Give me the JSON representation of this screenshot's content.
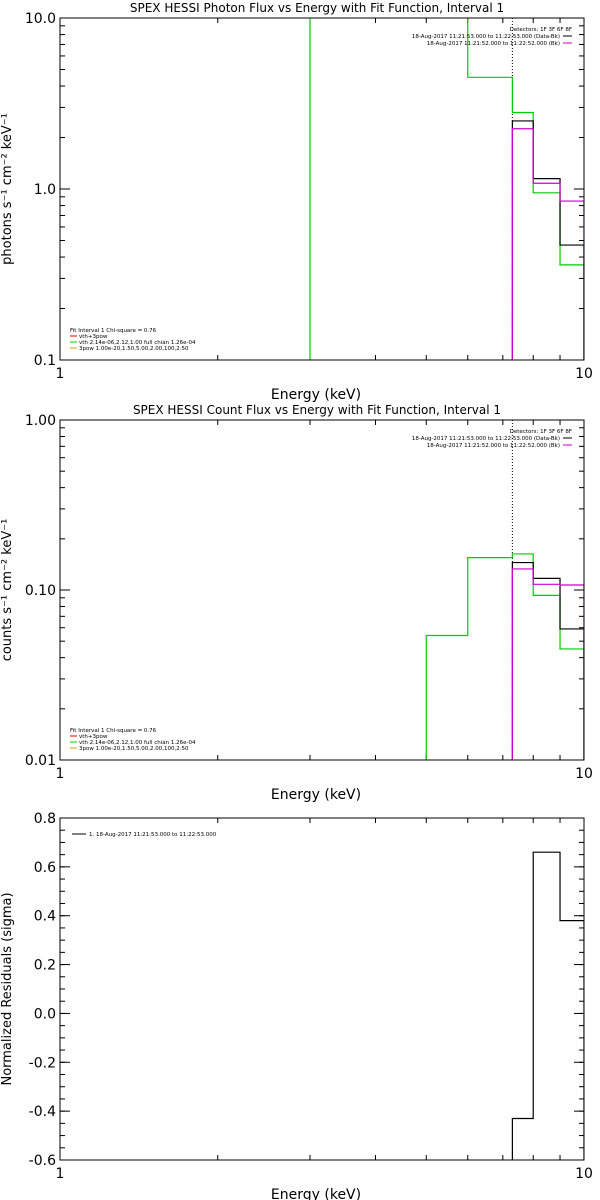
{
  "chart_data": [
    {
      "type": "line",
      "title": "SPEX HESSI Photon Flux vs Energy with Fit Function, Interval 1",
      "xlabel": "Energy (keV)",
      "ylabel": "photons s⁻¹ cm⁻² keV⁻¹",
      "xscale": "log",
      "yscale": "log",
      "xlim": [
        1,
        10
      ],
      "ylim": [
        0.1,
        10
      ],
      "xticks": [
        {
          "v": 1,
          "label": "1"
        },
        {
          "v": 10,
          "label": "10"
        }
      ],
      "yticks": [
        {
          "v": 0.1,
          "label": "0.1"
        },
        {
          "v": 1,
          "label": "1.0"
        },
        {
          "v": 10,
          "label": "10.0"
        }
      ],
      "legend_tr": {
        "header": "Detectors: 1F 3F 6F 8F",
        "entries": [
          {
            "text": "18-Aug-2017 11:21:53.000 to 11:22:53.000 (Data-Bk)",
            "color": "#000000"
          },
          {
            "text": "18-Aug-2017 11:21:52.000 to 11:22:52.000 (Bk)",
            "color": "#cc00cc"
          }
        ]
      },
      "legend_bl": {
        "header": "Fit Interval  1    Chi-square = 0.76",
        "entries": [
          {
            "text": "vth+3pow",
            "color": "#e00000"
          },
          {
            "text": "vth 2.14e-06,2.12,1.00   full chian 1.26e-04",
            "color": "#00cc00"
          },
          {
            "text": "3pow 1.00e-20,1.50,5.00,2.00,100,2.50",
            "color": "#d4a000"
          }
        ]
      },
      "vline": {
        "x": 7.3,
        "ymin": 0.1,
        "ymax": 10,
        "color": "#000000"
      },
      "series": [
        {
          "color": "#00cc00",
          "edges": [
            3,
            5,
            6,
            7.3,
            8,
            9,
            10
          ],
          "values": [
            10.2,
            10.2,
            4.5,
            2.8,
            0.95,
            0.36
          ],
          "drop_to_floor": true
        },
        {
          "color": "#000000",
          "edges": [
            7.3,
            8,
            9,
            10
          ],
          "values": [
            2.5,
            1.15,
            0.47
          ],
          "drop_to_floor": true
        },
        {
          "color": "#cc00cc",
          "edges": [
            7.3,
            8,
            9,
            10
          ],
          "values": [
            2.25,
            1.08,
            0.85
          ],
          "drop_to_floor": true
        }
      ]
    },
    {
      "type": "line",
      "title": "SPEX HESSI Count Flux vs Energy with Fit Function, Interval 1",
      "xlabel": "Energy (keV)",
      "ylabel": "counts s⁻¹ cm⁻² keV⁻¹",
      "xscale": "log",
      "yscale": "log",
      "xlim": [
        1,
        10
      ],
      "ylim": [
        0.01,
        1
      ],
      "xticks": [
        {
          "v": 1,
          "label": "1"
        },
        {
          "v": 10,
          "label": "10"
        }
      ],
      "yticks": [
        {
          "v": 0.01,
          "label": "0.01"
        },
        {
          "v": 0.1,
          "label": "0.10"
        },
        {
          "v": 1,
          "label": "1.00"
        }
      ],
      "legend_tr": {
        "header": "Detectors: 1F 3F 6F 8F",
        "entries": [
          {
            "text": "18-Aug-2017 11:21:53.000 to 11:22:53.000 (Data-Bk)",
            "color": "#000000"
          },
          {
            "text": "18-Aug-2017 11:21:52.000 to 11:22:52.000 (Bk)",
            "color": "#cc00cc"
          }
        ]
      },
      "legend_bl": {
        "header": "Fit Interval  1    Chi-square = 0.76",
        "entries": [
          {
            "text": "vth+3pow",
            "color": "#e00000"
          },
          {
            "text": "vth 2.14e-06,2.12,1.00   full chian 1.26e-04",
            "color": "#00cc00"
          },
          {
            "text": "3pow 1.00e-20,1.50,5.00,2.00,100,2.50",
            "color": "#d4a000"
          }
        ]
      },
      "vline": {
        "x": 7.3,
        "ymin": 0.01,
        "ymax": 1,
        "color": "#000000"
      },
      "series": [
        {
          "color": "#00cc00",
          "edges": [
            5,
            6,
            7.3,
            8,
            9,
            10
          ],
          "values": [
            0.054,
            0.155,
            0.163,
            0.093,
            0.045
          ],
          "drop_to_floor": true
        },
        {
          "color": "#000000",
          "edges": [
            7.3,
            8,
            9,
            10
          ],
          "values": [
            0.145,
            0.117,
            0.059
          ],
          "drop_to_floor": true
        },
        {
          "color": "#cc00cc",
          "edges": [
            7.3,
            8,
            9,
            10
          ],
          "values": [
            0.133,
            0.108,
            0.107
          ],
          "drop_to_floor": true
        }
      ]
    },
    {
      "type": "line",
      "title": "",
      "xlabel": "Energy (keV)",
      "ylabel": "Normalized Residuals (sigma)",
      "xscale": "log",
      "yscale": "linear",
      "xlim": [
        1,
        10
      ],
      "ylim": [
        -0.6,
        0.8
      ],
      "xticks": [
        {
          "v": 1,
          "label": "1"
        },
        {
          "v": 10,
          "label": "10"
        }
      ],
      "yticks": [
        {
          "v": -0.6,
          "label": "-0.6"
        },
        {
          "v": -0.4,
          "label": "-0.4"
        },
        {
          "v": -0.2,
          "label": "-0.2"
        },
        {
          "v": 0,
          "label": "0.0"
        },
        {
          "v": 0.2,
          "label": "0.2"
        },
        {
          "v": 0.4,
          "label": "0.4"
        },
        {
          "v": 0.6,
          "label": "0.6"
        },
        {
          "v": 0.8,
          "label": "0.8"
        }
      ],
      "legend_tl": {
        "entries": [
          {
            "text": "1. 18-Aug-2017 11:21:53.000 to 11:22:53.000",
            "color": "#000000"
          }
        ]
      },
      "series": [
        {
          "color": "#000000",
          "edges": [
            7.3,
            8,
            9,
            10
          ],
          "values": [
            -0.43,
            0.66,
            0.38
          ],
          "drop_to_floor": true
        }
      ]
    }
  ]
}
